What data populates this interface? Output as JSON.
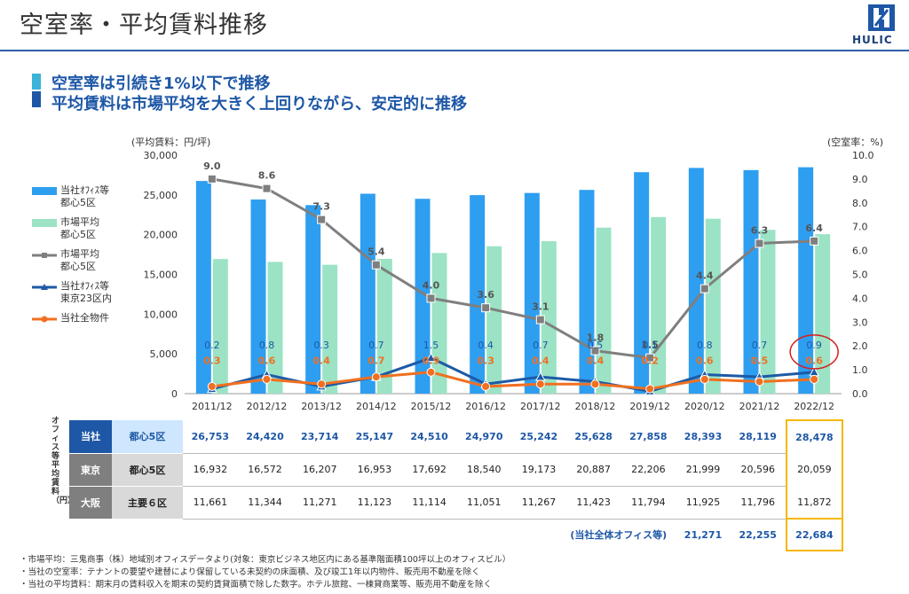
{
  "page": {
    "title": "空室率・平均賃料推移",
    "subtitle1": "空室率は引続き1%以下で推移",
    "subtitle2": "平均賃料は市場平均を大きく上回りながら、安定的に推移",
    "logo_text": "HULIC"
  },
  "chart_data": {
    "type": "bar",
    "categories": [
      "2011/12",
      "2012/12",
      "2013/12",
      "2014/12",
      "2015/12",
      "2016/12",
      "2017/12",
      "2018/12",
      "2019/12",
      "2020/12",
      "2021/12",
      "2022/12"
    ],
    "left_axis_label": "(平均賃料：円/坪)",
    "right_axis_label": "(空室率：%)",
    "ylim_left": [
      0,
      30000
    ],
    "ylim_right": [
      0,
      10
    ],
    "left_ticks": [
      "30,000",
      "25,000",
      "20,000",
      "15,000",
      "10,000",
      "5,000",
      "0"
    ],
    "right_ticks": [
      "10.0",
      "9.0",
      "8.0",
      "7.0",
      "6.0",
      "5.0",
      "4.0",
      "3.0",
      "2.0",
      "1.0",
      "0.0"
    ],
    "series": [
      {
        "name": "当社ｵﾌｨｽ等\n都心5区",
        "type": "bar",
        "axis": "left",
        "color": "#2e9ef0",
        "values": [
          26753,
          24420,
          23714,
          25147,
          24510,
          24970,
          25242,
          25628,
          27858,
          28393,
          28119,
          28478
        ]
      },
      {
        "name": "市場平均\n都心5区",
        "type": "bar",
        "axis": "left",
        "color": "#9be3c4",
        "values": [
          16932,
          16572,
          16207,
          16953,
          17692,
          18540,
          19173,
          20887,
          22206,
          21999,
          20596,
          20059
        ]
      },
      {
        "name": "市場平均\n都心5区",
        "type": "line",
        "axis": "right",
        "color": "#7f7f7f",
        "values": [
          9.0,
          8.6,
          7.3,
          5.4,
          4.0,
          3.6,
          3.1,
          1.8,
          1.5,
          4.4,
          6.3,
          6.4
        ],
        "labels": [
          "9.0",
          "8.6",
          "7.3",
          "5.4",
          "4.0",
          "3.6",
          "3.1",
          "1.8",
          "1.5",
          "4.4",
          "6.3",
          "6.4"
        ]
      },
      {
        "name": "当社ｵﾌｨｽ等\n東京23区内",
        "type": "line",
        "axis": "right",
        "color": "#1d5aa6",
        "values": [
          0.2,
          0.8,
          0.3,
          0.7,
          1.5,
          0.4,
          0.7,
          0.5,
          0.1,
          0.8,
          0.7,
          0.9
        ],
        "labels": [
          "0.2",
          "0.8",
          "0.3",
          "0.7",
          "1.5",
          "0.4",
          "0.7",
          "0.5",
          "0.1",
          "0.8",
          "0.7",
          "0.9"
        ]
      },
      {
        "name": "当社全物件",
        "type": "line",
        "axis": "right",
        "color": "#f07020",
        "values": [
          0.3,
          0.6,
          0.4,
          0.7,
          0.9,
          0.3,
          0.4,
          0.4,
          0.2,
          0.6,
          0.5,
          0.6
        ],
        "labels": [
          "0.3",
          "0.6",
          "0.4",
          "0.7",
          "0.9",
          "0.3",
          "0.4",
          "0.4",
          "0.2",
          "0.6",
          "0.5",
          "0.6"
        ]
      }
    ],
    "highlight_circle": "2022/12"
  },
  "table": {
    "vertical_label": "オフィス等平均賃料（円）",
    "rows": [
      {
        "region": "当社",
        "area": "都心5区",
        "values": [
          "26,753",
          "24,420",
          "23,714",
          "25,147",
          "24,510",
          "24,970",
          "25,242",
          "25,628",
          "27,858",
          "28,393",
          "28,119",
          "28,478"
        ]
      },
      {
        "region": "東京",
        "area": "都心5区",
        "values": [
          "16,932",
          "16,572",
          "16,207",
          "16,953",
          "17,692",
          "18,540",
          "19,173",
          "20,887",
          "22,206",
          "21,999",
          "20,596",
          "20,059"
        ]
      },
      {
        "region": "大阪",
        "area": "主要６区",
        "values": [
          "11,661",
          "11,344",
          "11,271",
          "11,123",
          "11,114",
          "11,051",
          "11,267",
          "11,423",
          "11,794",
          "11,925",
          "11,796",
          "11,872"
        ]
      }
    ],
    "overall": {
      "label": "(当社全体オフィス等)",
      "values": [
        "21,271",
        "22,255",
        "22,684"
      ]
    }
  },
  "colors": {
    "brand": "#1d57a6",
    "row_current": "#1d57a6",
    "row_gray": "#7f7f7f",
    "highlight_box": "#f5b800",
    "highlight_circle": "#d62020"
  },
  "footnotes": [
    "・市場平均：三鬼商事（株）地域別オフィスデータより(対象：東京ビジネス地区内にある基準階面積100坪以上のオフィスビル）",
    "・当社の空室率：テナントの要望や建替により保留している未契約の床面積、及び竣工1年以内物件、販売用不動産を除く",
    "・当社の平均賃料：期末月の賃料収入を期末の契約賃貸面積で除した数字。ホテル旅館、一棟貸商業等、販売用不動産を除く"
  ]
}
